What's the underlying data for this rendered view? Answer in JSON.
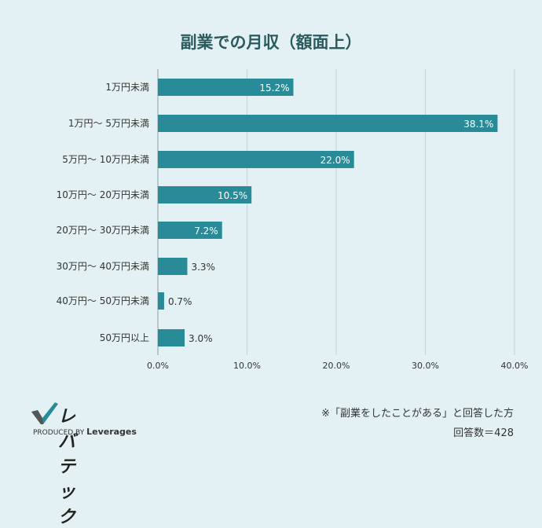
{
  "chart_data": {
    "type": "bar",
    "orientation": "horizontal",
    "title": "副業での月収（額面上）",
    "categories": [
      "1万円未満",
      "1万円〜 5万円未満",
      "5万円〜 10万円未満",
      "10万円〜 20万円未満",
      "20万円〜 30万円未満",
      "30万円〜 40万円未満",
      "40万円〜 50万円未満",
      "50万円以上"
    ],
    "values": [
      15.2,
      38.1,
      22.0,
      10.5,
      7.2,
      3.3,
      0.7,
      3.0
    ],
    "data_labels": [
      "15.2%",
      "38.1%",
      "22.0%",
      "10.5%",
      "7.2%",
      "3.3%",
      "0.7%",
      "3.0%"
    ],
    "xlim": [
      0,
      40
    ],
    "xticks": [
      "0.0%",
      "10.0%",
      "20.0%",
      "30.0%",
      "40.0%"
    ],
    "grid": true,
    "bar_color": "#2a8b98",
    "title_color": "#2b5a5e"
  },
  "footer": {
    "note": "※「副業をしたことがある」と回答した方",
    "count": "回答数＝428"
  },
  "logo": {
    "name": "レバテック",
    "sub_prefix": "PRODUCED BY",
    "sub_brand": "Leverages"
  }
}
